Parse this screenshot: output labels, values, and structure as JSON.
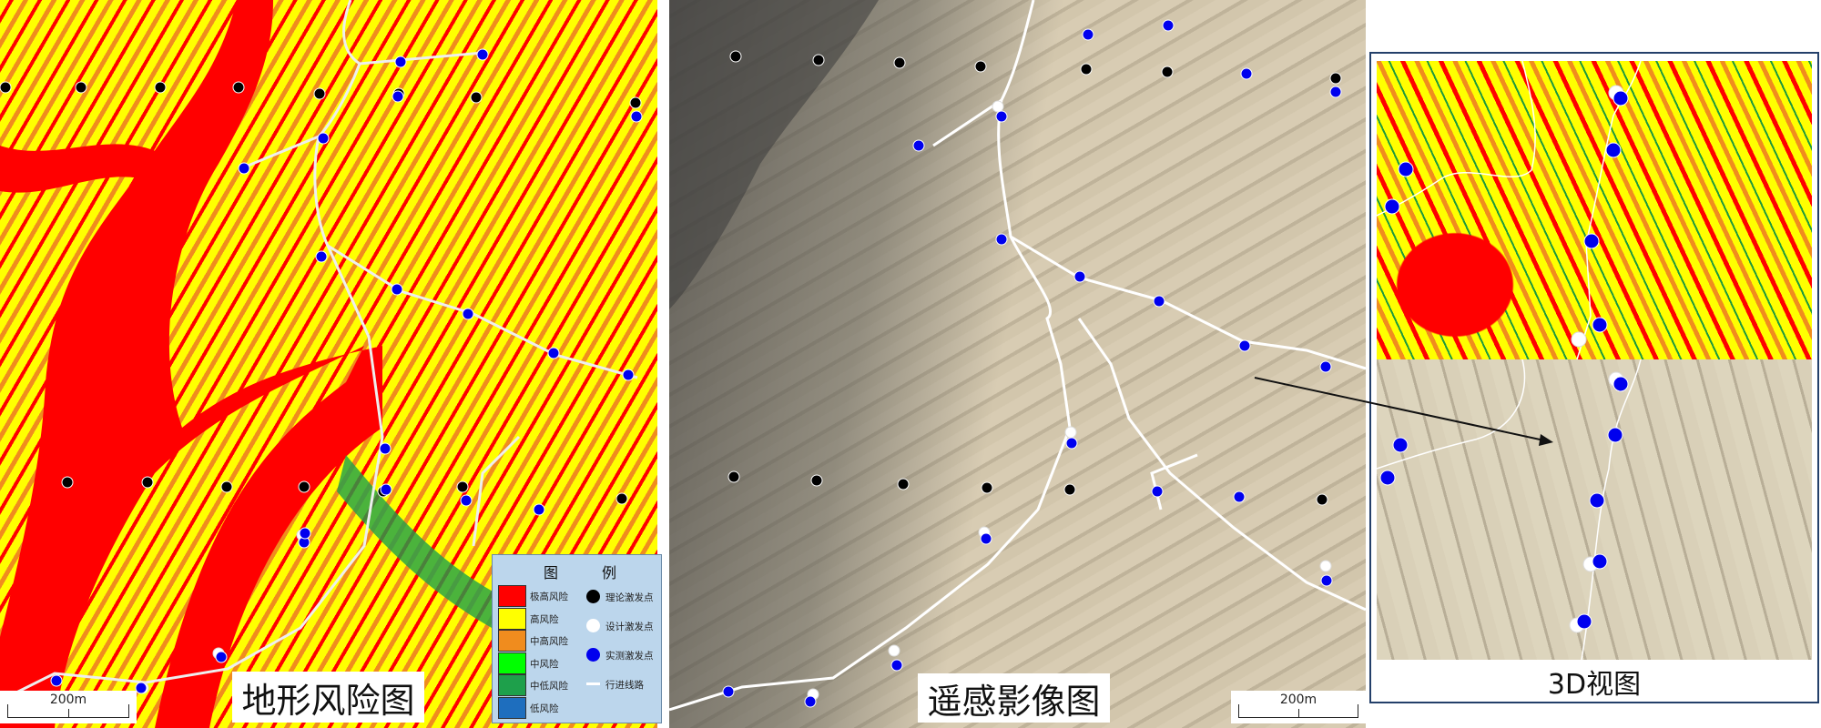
{
  "panels": {
    "risk_map": {
      "label": "地形风险图",
      "scale": "200m"
    },
    "remote_sensing": {
      "label": "遥感影像图",
      "scale": "200m"
    },
    "view_3d": {
      "label": "3D视图"
    }
  },
  "legend": {
    "title_left": "图",
    "title_right": "例",
    "risk_levels": [
      {
        "label": "极高风险",
        "color": "#ff0000"
      },
      {
        "label": "高风险",
        "color": "#ffff00"
      },
      {
        "label": "中高风险",
        "color": "#f08c1e"
      },
      {
        "label": "中风险",
        "color": "#00ff00"
      },
      {
        "label": "中低风险",
        "color": "#1ea04b"
      },
      {
        "label": "低风险",
        "color": "#1e6ebe"
      }
    ],
    "markers": [
      {
        "label": "理论激发点",
        "color": "#000000",
        "icon": "black-dot-icon"
      },
      {
        "label": "设计激发点",
        "color": "#ffffff",
        "icon": "white-dot-icon"
      },
      {
        "label": "实测激发点",
        "color": "#0000ee",
        "icon": "blue-dot-icon"
      },
      {
        "label": "行进线路",
        "color": "#ffffff",
        "icon": "route-line-icon"
      }
    ]
  }
}
